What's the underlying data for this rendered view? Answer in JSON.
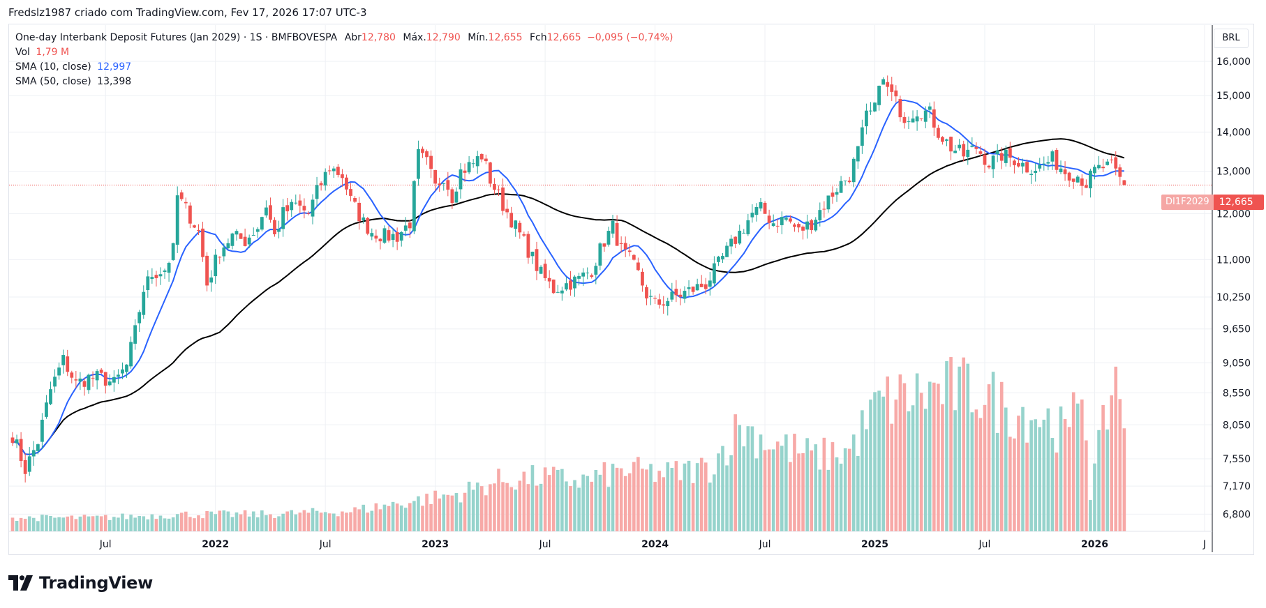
{
  "header": {
    "byline": "Fredslz1987 criado com TradingView.com, Fev 17, 2026 17:07 UTC-3"
  },
  "legend": {
    "title": "One-day Interbank Deposit Futures (Jan 2029)",
    "interval": "1S",
    "exchange": "BMFBOVESPA",
    "open_label": "Abr",
    "open": "12,780",
    "high_label": "Máx.",
    "high": "12,790",
    "low_label": "Mín.",
    "low": "12,655",
    "close_label": "Fch",
    "close": "12,665",
    "change": "−0,095 (−0,74%)",
    "vol_label": "Vol",
    "vol_value": "1,79 M",
    "sma10_label": "SMA (10, close)",
    "sma10_value": "12,997",
    "sma50_label": "SMA (50, close)",
    "sma50_value": "13,398"
  },
  "price_badge": {
    "symbol": "DI1F2029",
    "value": "12,665"
  },
  "currency": "BRL",
  "brand": "TradingView",
  "colors": {
    "up": "#26a69a",
    "down": "#ef5350",
    "vol_up": "#96d3cc",
    "vol_down": "#f7a9a7",
    "sma10": "#2962ff",
    "sma50": "#000000",
    "grid": "#eef0f4"
  },
  "chart_data": {
    "type": "candlestick",
    "title": "One-day Interbank Deposit Futures (Jan 2029)",
    "y_axis_ticks": [
      6.8,
      7.17,
      7.55,
      8.05,
      8.55,
      9.05,
      9.65,
      10.25,
      11.0,
      12.0,
      13.0,
      14.0,
      15.0,
      16.0
    ],
    "y_axis_tick_labels": [
      "6,800",
      "7,170",
      "7,550",
      "8,050",
      "8,550",
      "9,050",
      "9,650",
      "10,250",
      "11,000",
      "12,000",
      "13,000",
      "14,000",
      "15,000",
      "16,000"
    ],
    "y_scale": "log",
    "ylim": [
      6.6,
      17.0
    ],
    "x_axis_labels": [
      {
        "label": "Jul",
        "week": 22
      },
      {
        "label": "2022",
        "week": 48
      },
      {
        "label": "Jul",
        "week": 74
      },
      {
        "label": "2023",
        "week": 100
      },
      {
        "label": "Jul",
        "week": 126
      },
      {
        "label": "2024",
        "week": 152
      },
      {
        "label": "Jul",
        "week": 178
      },
      {
        "label": "2025",
        "week": 204
      },
      {
        "label": "Jul",
        "week": 230
      },
      {
        "label": "2026",
        "week": 256
      },
      {
        "label": "J",
        "week": 282
      }
    ],
    "x_range_weeks": [
      0,
      283
    ],
    "last_week": 263,
    "price_keypoints": [
      [
        0,
        7.9
      ],
      [
        3,
        7.4
      ],
      [
        6,
        7.8
      ],
      [
        9,
        8.6
      ],
      [
        12,
        9.1
      ],
      [
        15,
        8.7
      ],
      [
        18,
        8.8
      ],
      [
        21,
        8.8
      ],
      [
        24,
        8.7
      ],
      [
        27,
        9.0
      ],
      [
        29,
        9.6
      ],
      [
        31,
        10.4
      ],
      [
        33,
        10.7
      ],
      [
        36,
        10.8
      ],
      [
        38,
        11.2
      ],
      [
        39,
        12.4
      ],
      [
        41,
        12.1
      ],
      [
        44,
        11.6
      ],
      [
        46,
        10.5
      ],
      [
        49,
        11.2
      ],
      [
        52,
        11.5
      ],
      [
        55,
        11.4
      ],
      [
        58,
        11.7
      ],
      [
        60,
        12.2
      ],
      [
        62,
        11.5
      ],
      [
        64,
        12.0
      ],
      [
        67,
        12.2
      ],
      [
        70,
        12.0
      ],
      [
        72,
        12.5
      ],
      [
        75,
        13.1
      ],
      [
        78,
        12.9
      ],
      [
        80,
        12.3
      ],
      [
        83,
        11.8
      ],
      [
        85,
        11.6
      ],
      [
        88,
        11.5
      ],
      [
        91,
        11.5
      ],
      [
        94,
        11.8
      ],
      [
        96,
        13.4
      ],
      [
        98,
        13.2
      ],
      [
        100,
        12.6
      ],
      [
        102,
        12.9
      ],
      [
        104,
        12.4
      ],
      [
        106,
        13.0
      ],
      [
        109,
        13.2
      ],
      [
        111,
        13.4
      ],
      [
        113,
        12.8
      ],
      [
        116,
        12.2
      ],
      [
        119,
        11.7
      ],
      [
        122,
        11.2
      ],
      [
        125,
        10.7
      ],
      [
        128,
        10.4
      ],
      [
        131,
        10.5
      ],
      [
        134,
        10.6
      ],
      [
        137,
        10.8
      ],
      [
        140,
        11.4
      ],
      [
        142,
        11.7
      ],
      [
        144,
        11.2
      ],
      [
        146,
        11.0
      ],
      [
        148,
        10.7
      ],
      [
        150,
        10.3
      ],
      [
        152,
        10.1
      ],
      [
        155,
        10.2
      ],
      [
        158,
        10.3
      ],
      [
        161,
        10.4
      ],
      [
        164,
        10.5
      ],
      [
        167,
        10.9
      ],
      [
        170,
        11.3
      ],
      [
        173,
        11.7
      ],
      [
        175,
        12.0
      ],
      [
        177,
        12.1
      ],
      [
        180,
        11.8
      ],
      [
        183,
        11.9
      ],
      [
        186,
        11.6
      ],
      [
        189,
        11.8
      ],
      [
        192,
        12.2
      ],
      [
        195,
        12.6
      ],
      [
        198,
        12.9
      ],
      [
        200,
        13.5
      ],
      [
        202,
        14.4
      ],
      [
        204,
        14.6
      ],
      [
        205,
        15.5
      ],
      [
        207,
        15.2
      ],
      [
        209,
        14.8
      ],
      [
        211,
        14.4
      ],
      [
        214,
        14.6
      ],
      [
        217,
        14.5
      ],
      [
        219,
        14.0
      ],
      [
        222,
        13.6
      ],
      [
        225,
        13.4
      ],
      [
        228,
        13.6
      ],
      [
        231,
        13.2
      ],
      [
        234,
        13.4
      ],
      [
        237,
        13.3
      ],
      [
        240,
        13.1
      ],
      [
        243,
        13.1
      ],
      [
        246,
        13.3
      ],
      [
        249,
        13.0
      ],
      [
        252,
        12.9
      ],
      [
        254,
        12.7
      ],
      [
        256,
        13.0
      ],
      [
        258,
        13.1
      ],
      [
        260,
        13.1
      ],
      [
        262,
        12.8
      ],
      [
        263,
        12.665
      ]
    ],
    "volume_keypoints": [
      [
        0,
        0.2
      ],
      [
        20,
        0.2
      ],
      [
        40,
        0.25
      ],
      [
        60,
        0.25
      ],
      [
        80,
        0.3
      ],
      [
        95,
        0.45
      ],
      [
        105,
        0.55
      ],
      [
        115,
        0.75
      ],
      [
        125,
        0.8
      ],
      [
        135,
        0.75
      ],
      [
        145,
        0.9
      ],
      [
        155,
        0.85
      ],
      [
        165,
        0.95
      ],
      [
        172,
        1.55
      ],
      [
        180,
        1.3
      ],
      [
        190,
        1.1
      ],
      [
        198,
        1.2
      ],
      [
        205,
        1.9
      ],
      [
        212,
        2.0
      ],
      [
        220,
        2.1
      ],
      [
        228,
        2.1
      ],
      [
        236,
        1.8
      ],
      [
        244,
        1.7
      ],
      [
        250,
        1.4
      ],
      [
        253,
        2.3
      ],
      [
        255,
        0.6
      ],
      [
        258,
        1.5
      ],
      [
        261,
        2.35
      ],
      [
        263,
        1.79
      ]
    ],
    "volume_max": 2.5,
    "sma_periods": [
      10,
      50
    ]
  }
}
